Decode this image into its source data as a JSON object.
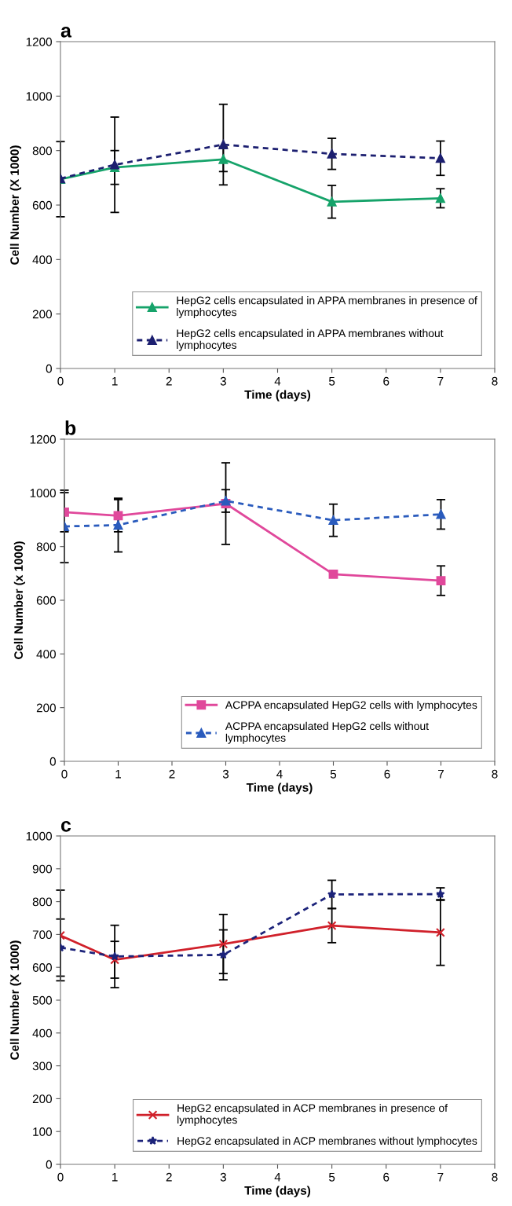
{
  "chart_data": [
    {
      "type": "line",
      "title": "a",
      "xlabel": "Time (days)",
      "ylabel": "Cell Number (X 1000)",
      "x": [
        0,
        1,
        3,
        5,
        7
      ],
      "xlim": [
        0,
        8
      ],
      "xticks": [
        0,
        1,
        2,
        3,
        4,
        5,
        6,
        7,
        8
      ],
      "ylim": [
        0,
        1200
      ],
      "yticks": [
        0,
        200,
        400,
        600,
        800,
        1000,
        1200
      ],
      "grid": false,
      "legend": "bottom right",
      "series": [
        {
          "name": "HepG2 cells encapsulated in APPA membranes in presence of\nlymphocytes",
          "color": "#16a36a",
          "values": [
            695,
            738,
            768,
            612,
            625
          ],
          "errors": [
            138,
            62,
            45,
            60,
            35
          ],
          "marker": "triangle",
          "line_style": "solid"
        },
        {
          "name": "HepG2 cells encapsulated in APPA membranes without\nlymphocytes",
          "color": "#1c1f70",
          "values": [
            697,
            748,
            822,
            788,
            772
          ],
          "errors": [
            null,
            175,
            148,
            57,
            63
          ],
          "marker": "triangle",
          "line_style": "dashed"
        }
      ]
    },
    {
      "type": "line",
      "title": "b",
      "xlabel": "Time (days)",
      "ylabel": "Cell Number (x 1000)",
      "x": [
        0,
        1,
        3,
        5,
        7
      ],
      "xlim": [
        0,
        8
      ],
      "xticks": [
        0,
        1,
        2,
        3,
        4,
        5,
        6,
        7,
        8
      ],
      "ylim": [
        0,
        1200
      ],
      "yticks": [
        0,
        200,
        400,
        600,
        800,
        1000,
        1200
      ],
      "grid": false,
      "legend": "bottom right",
      "series": [
        {
          "name": "ACPPA encapsulated HepG2 cells with lymphocytes",
          "color": "#e0489b",
          "values": [
            928,
            915,
            960,
            697,
            673
          ],
          "errors": [
            73,
            60,
            152,
            null,
            55
          ],
          "marker": "square",
          "line_style": "solid"
        },
        {
          "name": "ACPPA encapsulated HepG2 cells without\nlymphocytes",
          "color": "#2a5bbd",
          "values": [
            875,
            880,
            970,
            898,
            920
          ],
          "errors": [
            135,
            100,
            42,
            60,
            55
          ],
          "marker": "triangle",
          "line_style": "dashed"
        }
      ]
    },
    {
      "type": "line",
      "title": "c",
      "xlabel": "Time (days)",
      "ylabel": "Cell Number (X 1000)",
      "x": [
        0,
        1,
        3,
        5,
        7
      ],
      "xlim": [
        0,
        8
      ],
      "xticks": [
        0,
        1,
        2,
        3,
        4,
        5,
        6,
        7,
        8
      ],
      "ylim": [
        0,
        1000
      ],
      "yticks": [
        0,
        100,
        200,
        300,
        400,
        500,
        600,
        700,
        800,
        900,
        1000
      ],
      "grid": false,
      "legend": "bottom right",
      "series": [
        {
          "name": "HepG2 encapsulated in ACP membranes in presence of\nlymphocytes",
          "color": "#d0202a",
          "values": [
            697,
            623,
            671,
            727,
            706
          ],
          "errors": [
            138,
            56,
            90,
            52,
            100
          ],
          "marker": "cross",
          "line_style": "solid"
        },
        {
          "name": "HepG2 encapsulated in ACP membranes without lymphocytes",
          "color": "#1c237a",
          "values": [
            660,
            633,
            638,
            822,
            823
          ],
          "errors": [
            87,
            95,
            76,
            43,
            19
          ],
          "marker": "star",
          "line_style": "dashed"
        }
      ]
    }
  ]
}
